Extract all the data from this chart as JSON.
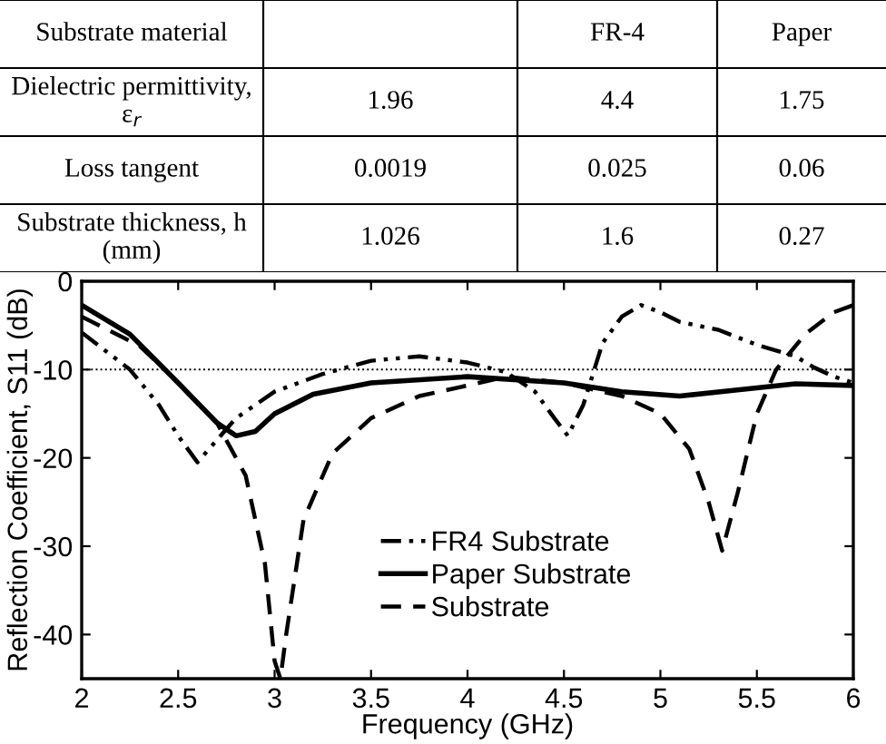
{
  "chart_data": {
    "type": "line",
    "xlabel": "Frequency (GHz)",
    "ylabel": "Reflection Coefficient, S11 (dB)",
    "annotations": [
      "Substrate material",
      null,
      "FR-4",
      "Paper",
      "Dielectric permittivity, ε$_{r}$",
      "1.96",
      "4.4",
      "1.75",
      "Loss tangent",
      "0.0019",
      "0.025",
      "0.06",
      "Substrate thickness, h (mm)",
      "1.026",
      "1.6",
      "0.27"
    ],
    "xlim": [
      2,
      6
    ],
    "ylim": [
      -45,
      0
    ],
    "xticks": [
      2,
      2.5,
      3,
      3.5,
      4,
      4.5,
      5,
      5.5,
      6
    ],
    "yticks": [
      {
        "value": 0,
        "label": "0"
      },
      {
        "value": -10,
        "label": "-10"
      },
      {
        "value": -20,
        "label": "-20"
      },
      {
        "value": -30,
        "label": "-30"
      },
      {
        "value": -40,
        "label": "-40"
      }
    ],
    "grid": false,
    "legend": "bottom",
    "ref_lines": [
      {
        "axis": "y",
        "value": -10,
        "color": "#000000",
        "line_style": "dotted"
      }
    ],
    "series": [
      {
        "name": "FR4 Substrate",
        "color": "#000000",
        "line_style": "dashdotdot",
        "x": [
          2,
          2.25,
          2.4,
          2.5,
          2.6,
          2.7,
          2.8,
          3.0,
          3.25,
          3.5,
          3.75,
          4.0,
          4.2,
          4.35,
          4.45,
          4.52,
          4.6,
          4.7,
          4.8,
          4.9,
          5.0,
          5.1,
          5.3,
          5.5,
          5.7,
          5.8,
          5.9,
          6
        ],
        "values": [
          -5.8,
          -10,
          -14,
          -17.5,
          -20.5,
          -18,
          -15.5,
          -12.5,
          -10.5,
          -9,
          -8.5,
          -9.2,
          -10.3,
          -12.5,
          -15.5,
          -17.5,
          -14,
          -7,
          -4,
          -2.7,
          -3.5,
          -4.6,
          -5.5,
          -7.2,
          -8.5,
          -9.8,
          -10.8,
          -11.5
        ]
      },
      {
        "name": "Paper Substrate",
        "color": "#000000",
        "line_style": "solid",
        "x": [
          2,
          2.25,
          2.5,
          2.7,
          2.8,
          2.9,
          3.0,
          3.2,
          3.5,
          4.0,
          4.5,
          4.8,
          5.1,
          5.4,
          5.7,
          6
        ],
        "values": [
          -2.7,
          -6,
          -11.5,
          -16,
          -17.5,
          -17,
          -15,
          -12.8,
          -11.5,
          -10.8,
          -11.5,
          -12.5,
          -13,
          -12.3,
          -11.6,
          -11.8
        ]
      },
      {
        "name": "Substrate",
        "color": "#000000",
        "line_style": "dashed",
        "x": [
          2,
          2.3,
          2.5,
          2.7,
          2.85,
          2.95,
          3.0,
          3.03,
          3.06,
          3.15,
          3.3,
          3.5,
          3.75,
          4.0,
          4.2,
          4.5,
          4.8,
          5.0,
          5.15,
          5.25,
          5.32,
          5.4,
          5.5,
          5.6,
          5.75,
          5.9,
          6
        ],
        "values": [
          -4,
          -7.3,
          -11.5,
          -16,
          -22,
          -32,
          -43,
          -45,
          -40,
          -27,
          -19.5,
          -15.5,
          -13,
          -11.8,
          -10.8,
          -11.5,
          -13,
          -15,
          -19,
          -25,
          -30.5,
          -24,
          -15,
          -10,
          -6,
          -3.5,
          -2.7
        ]
      }
    ]
  }
}
